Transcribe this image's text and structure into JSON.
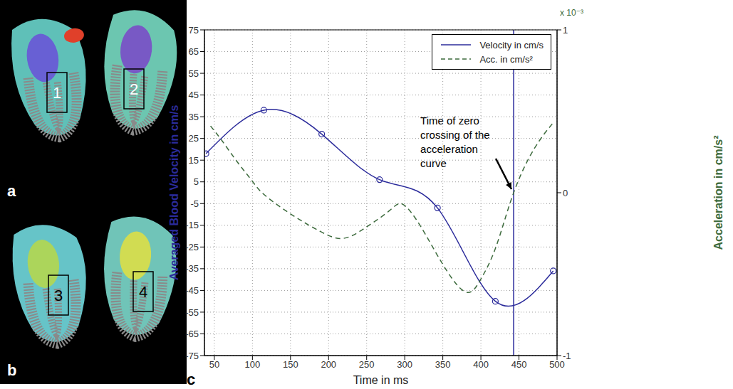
{
  "image_panels": [
    {
      "panel": "a",
      "regions": [
        "1",
        "2"
      ]
    },
    {
      "panel": "b",
      "regions": [
        "3",
        "4"
      ]
    }
  ],
  "chart_data": {
    "type": "line",
    "panel": "c",
    "x_label": "Time in ms",
    "y_label": "Averaged Blood Velocity in cm/s",
    "y2_label": "Acceleration in cm/s²",
    "y2_scale_label": "x 10⁻³",
    "xlim": [
      37,
      500
    ],
    "xticks": [
      50,
      100,
      150,
      200,
      250,
      300,
      350,
      400,
      450,
      500
    ],
    "ylim": [
      -75,
      75
    ],
    "yticks": [
      -75,
      -65,
      -55,
      -45,
      -35,
      -25,
      -15,
      -5,
      5,
      15,
      25,
      35,
      45,
      55,
      65,
      75
    ],
    "y2lim": [
      -1,
      1
    ],
    "y2ticks": [
      -1,
      0,
      1
    ],
    "grid": true,
    "legend": "top-right",
    "series": [
      {
        "name": "Velocity in cm/s",
        "color": "#2b2b9b",
        "marker": "circle",
        "line_style": "solid",
        "x": [
          39,
          115,
          191,
          267,
          343,
          419,
          495
        ],
        "values": [
          18,
          38,
          27,
          6,
          -7,
          -50,
          -36
        ]
      },
      {
        "name": "Acc. in cm/s²",
        "color": "#3d6b3d",
        "line_style": "dashed",
        "axis": "y2",
        "x": [
          45,
          60,
          80,
          100,
          115,
          150,
          190,
          220,
          250,
          280,
          297,
          320,
          350,
          380,
          400,
          420,
          443,
          470,
          495
        ],
        "values": [
          0.41,
          0.32,
          0.19,
          0.07,
          -0.01,
          -0.13,
          -0.24,
          -0.28,
          -0.21,
          -0.11,
          -0.07,
          -0.2,
          -0.44,
          -0.61,
          -0.53,
          -0.33,
          0,
          0.27,
          0.43
        ]
      }
    ],
    "annotations": [
      {
        "text": "Time of zero crossing of the acceleration curve",
        "x": 443,
        "y": 0
      }
    ]
  }
}
